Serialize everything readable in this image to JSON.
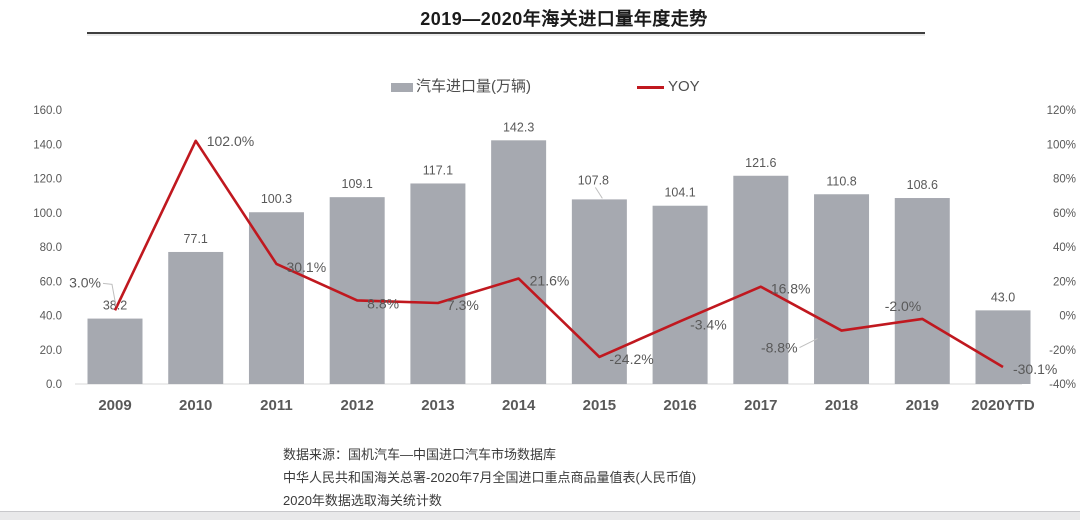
{
  "header": {
    "title": "2019—2020年海关进口量年度走势"
  },
  "legend": {
    "bars_label": "汽车进口量(万辆)",
    "yoy_label": "YOY"
  },
  "colors": {
    "bar": "#a6a9b0",
    "line": "#c0181f",
    "axis_text": "#595959",
    "title_text": "#1a1a1a",
    "footer_text": "#3b3b3b",
    "baseline": "#d9d9d9",
    "leader": "#bfbfbf",
    "divider": "#3f3f3f",
    "bottom_bar_bg": "#e9e9ea",
    "bottom_bar_border": "#c8c8cb"
  },
  "chart_data": {
    "type": "bar+line",
    "title": "2019—2020年海关进口量年度走势",
    "categories": [
      "2009",
      "2010",
      "2011",
      "2012",
      "2013",
      "2014",
      "2015",
      "2016",
      "2017",
      "2018",
      "2019",
      "2020YTD"
    ],
    "series": [
      {
        "name": "汽车进口量(万辆)",
        "type": "bar",
        "axis": "left",
        "values": [
          38.2,
          77.1,
          100.3,
          109.1,
          117.1,
          142.3,
          107.8,
          104.1,
          121.6,
          110.8,
          108.6,
          43.0
        ],
        "data_labels": [
          "38.2",
          "77.1",
          "100.3",
          "109.1",
          "117.1",
          "142.3",
          "107.8",
          "104.1",
          "121.6",
          "110.8",
          "108.6",
          "43.0"
        ]
      },
      {
        "name": "YOY",
        "type": "line",
        "axis": "right",
        "values": [
          3.0,
          102.0,
          30.1,
          8.8,
          7.3,
          21.6,
          -24.2,
          -3.4,
          16.8,
          -8.8,
          -2.0,
          -30.1
        ],
        "data_labels": [
          "3.0%",
          "102.0%",
          "30.1%",
          "8.8%",
          "7.3%",
          "21.6%",
          "-24.2%",
          "-3.4%",
          "16.8%",
          "-8.8%",
          "-2.0%",
          "-30.1%"
        ]
      }
    ],
    "left_axis": {
      "min": 0,
      "max": 160,
      "step": 20,
      "ticks": [
        "0.0",
        "20.0",
        "40.0",
        "60.0",
        "80.0",
        "100.0",
        "120.0",
        "140.0",
        "160.0"
      ]
    },
    "right_axis": {
      "min": -40,
      "max": 120,
      "step": 20,
      "ticks": [
        "-40%",
        "-20%",
        "0%",
        "20%",
        "40%",
        "60%",
        "80%",
        "100%",
        "120%"
      ]
    },
    "grid": false,
    "legend_position": "top"
  },
  "footer": {
    "lines": [
      "数据来源：国机汽车—中国进口汽车市场数据库",
      "中华人民共和国海关总署-2020年7月全国进口重点商品量值表(人民币值)",
      "2020年数据选取海关统计数"
    ]
  }
}
